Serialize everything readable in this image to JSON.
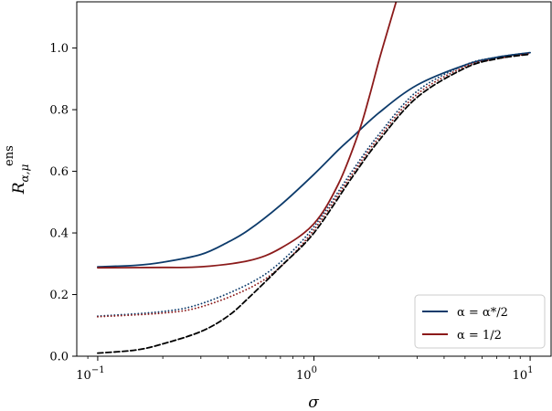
{
  "chart_data": {
    "type": "line",
    "xscale": "log",
    "xlim": [
      0.08,
      12.5
    ],
    "ylim": [
      0.0,
      1.15
    ],
    "xlabel": "σ",
    "ylabel": "R",
    "ylabel_sup": "ens",
    "ylabel_sub": "α,μ",
    "xticks": [
      {
        "value": 0.1,
        "base": "10",
        "exp": "−1"
      },
      {
        "value": 1,
        "base": "10",
        "exp": "0"
      },
      {
        "value": 10,
        "base": "10",
        "exp": "1"
      }
    ],
    "yticks": [
      {
        "value": 0.0,
        "label": "0.0"
      },
      {
        "value": 0.2,
        "label": "0.2"
      },
      {
        "value": 0.4,
        "label": "0.4"
      },
      {
        "value": 0.6,
        "label": "0.6"
      },
      {
        "value": 0.8,
        "label": "0.8"
      },
      {
        "value": 1.0,
        "label": "1.0"
      }
    ],
    "legend_position": "bottom-right",
    "grid": false,
    "series": [
      {
        "name": "α = α*/2",
        "color": "#0d3b6b",
        "style": "solid",
        "x": [
          0.1,
          0.15,
          0.2,
          0.3,
          0.4,
          0.5,
          0.7,
          1.0,
          1.3,
          1.5,
          2.0,
          3.0,
          5.0,
          7.0,
          10.0
        ],
        "y": [
          0.29,
          0.295,
          0.305,
          0.33,
          0.37,
          0.41,
          0.49,
          0.59,
          0.67,
          0.71,
          0.79,
          0.88,
          0.945,
          0.97,
          0.985
        ]
      },
      {
        "name": "α = 1/2",
        "color": "#8b1a1a",
        "style": "solid",
        "x": [
          0.1,
          0.2,
          0.3,
          0.5,
          0.7,
          1.0,
          1.3,
          1.6,
          1.8,
          2.0,
          2.2,
          2.4
        ],
        "y": [
          0.287,
          0.288,
          0.29,
          0.31,
          0.35,
          0.43,
          0.56,
          0.72,
          0.84,
          0.96,
          1.06,
          1.15
        ]
      },
      {
        "name": "",
        "color": "#0d3b6b",
        "style": "dotted",
        "x": [
          0.1,
          0.2,
          0.3,
          0.5,
          0.7,
          1.0,
          1.5,
          2.0,
          3.0,
          5.0,
          7.0,
          10.0
        ],
        "y": [
          0.13,
          0.145,
          0.17,
          0.235,
          0.305,
          0.42,
          0.6,
          0.72,
          0.86,
          0.945,
          0.97,
          0.985
        ]
      },
      {
        "name": "",
        "color": "#8b1a1a",
        "style": "dotted",
        "x": [
          0.1,
          0.2,
          0.3,
          0.5,
          0.7,
          1.0,
          1.5,
          2.0,
          3.0,
          5.0,
          7.0,
          10.0
        ],
        "y": [
          0.128,
          0.14,
          0.16,
          0.22,
          0.29,
          0.41,
          0.59,
          0.71,
          0.85,
          0.94,
          0.965,
          0.982
        ]
      },
      {
        "name": "",
        "color": "#000000",
        "style": "dashed",
        "x": [
          0.1,
          0.15,
          0.2,
          0.3,
          0.4,
          0.5,
          0.7,
          1.0,
          1.5,
          2.0,
          3.0,
          5.0,
          7.0,
          10.0
        ],
        "y": [
          0.01,
          0.02,
          0.04,
          0.08,
          0.13,
          0.19,
          0.29,
          0.4,
          0.58,
          0.7,
          0.84,
          0.935,
          0.965,
          0.98
        ]
      }
    ],
    "legend": [
      {
        "label": "α = α*/2",
        "color": "#0d3b6b"
      },
      {
        "label": "α = 1/2",
        "color": "#8b1a1a"
      }
    ]
  }
}
